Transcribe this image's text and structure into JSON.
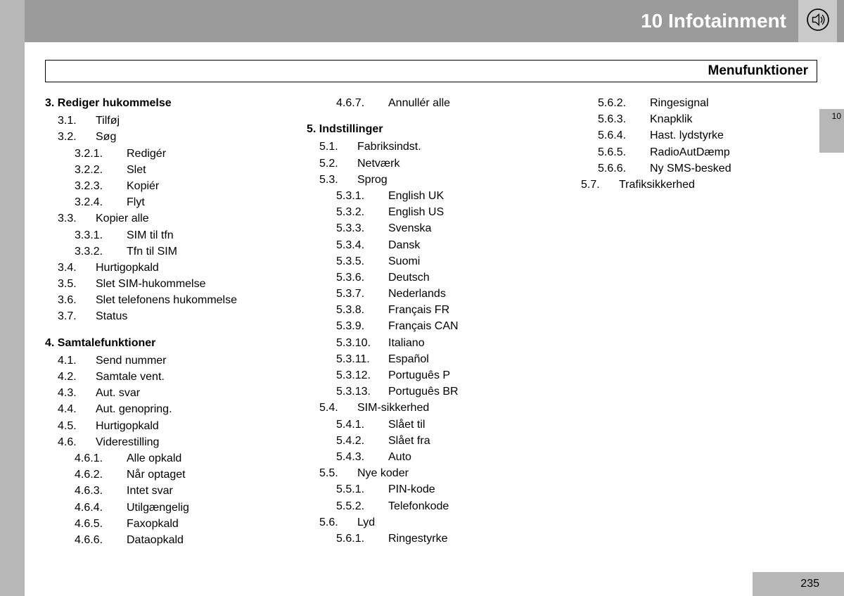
{
  "header": {
    "title": "10 Infotainment",
    "subtitle": "Menufunktioner",
    "side_tab": "10",
    "page_number": "235"
  },
  "columns": [
    [
      {
        "type": "head",
        "text": "3. Rediger hukommelse"
      },
      {
        "type": "l1",
        "num": "3.1.",
        "text": "Tilføj"
      },
      {
        "type": "l1",
        "num": "3.2.",
        "text": "Søg"
      },
      {
        "type": "l2",
        "num": "3.2.1.",
        "text": "Redigér"
      },
      {
        "type": "l2",
        "num": "3.2.2.",
        "text": "Slet"
      },
      {
        "type": "l2",
        "num": "3.2.3.",
        "text": "Kopiér"
      },
      {
        "type": "l2",
        "num": "3.2.4.",
        "text": "Flyt"
      },
      {
        "type": "l1",
        "num": "3.3.",
        "text": "Kopier alle"
      },
      {
        "type": "l2",
        "num": "3.3.1.",
        "text": "SIM til tfn"
      },
      {
        "type": "l2",
        "num": "3.3.2.",
        "text": "Tfn til SIM"
      },
      {
        "type": "l1",
        "num": "3.4.",
        "text": "Hurtigopkald"
      },
      {
        "type": "l1",
        "num": "3.5.",
        "text": "Slet SIM-hukommelse"
      },
      {
        "type": "l1",
        "num": "3.6.",
        "text": "Slet telefonens hukommelse"
      },
      {
        "type": "l1",
        "num": "3.7.",
        "text": "Status"
      },
      {
        "type": "head",
        "text": "4. Samtalefunktioner"
      },
      {
        "type": "l1",
        "num": "4.1.",
        "text": "Send nummer"
      },
      {
        "type": "l1",
        "num": "4.2.",
        "text": "Samtale vent."
      },
      {
        "type": "l1",
        "num": "4.3.",
        "text": "Aut. svar"
      },
      {
        "type": "l1",
        "num": "4.4.",
        "text": "Aut. genopring."
      },
      {
        "type": "l1",
        "num": "4.5.",
        "text": "Hurtigopkald"
      },
      {
        "type": "l1",
        "num": "4.6.",
        "text": "Viderestilling"
      },
      {
        "type": "l2",
        "num": "4.6.1.",
        "text": "Alle opkald"
      },
      {
        "type": "l2",
        "num": "4.6.2.",
        "text": "Når optaget"
      },
      {
        "type": "l2",
        "num": "4.6.3.",
        "text": "Intet svar"
      },
      {
        "type": "l2",
        "num": "4.6.4.",
        "text": "Utilgængelig"
      },
      {
        "type": "l2",
        "num": "4.6.5.",
        "text": "Faxopkald"
      },
      {
        "type": "l2",
        "num": "4.6.6.",
        "text": "Dataopkald"
      }
    ],
    [
      {
        "type": "l2",
        "num": "4.6.7.",
        "text": "Annullér alle"
      },
      {
        "type": "head",
        "text": "5. Indstillinger"
      },
      {
        "type": "l1",
        "num": "5.1.",
        "text": "Fabriksindst."
      },
      {
        "type": "l1",
        "num": "5.2.",
        "text": "Netværk"
      },
      {
        "type": "l1",
        "num": "5.3.",
        "text": "Sprog"
      },
      {
        "type": "l2",
        "num": "5.3.1.",
        "text": "English UK"
      },
      {
        "type": "l2",
        "num": "5.3.2.",
        "text": "English US"
      },
      {
        "type": "l2",
        "num": "5.3.3.",
        "text": "Svenska"
      },
      {
        "type": "l2",
        "num": "5.3.4.",
        "text": "Dansk"
      },
      {
        "type": "l2",
        "num": "5.3.5.",
        "text": "Suomi"
      },
      {
        "type": "l2",
        "num": "5.3.6.",
        "text": "Deutsch"
      },
      {
        "type": "l2",
        "num": "5.3.7.",
        "text": "Nederlands"
      },
      {
        "type": "l2",
        "num": "5.3.8.",
        "text": "Français FR"
      },
      {
        "type": "l2",
        "num": "5.3.9.",
        "text": "Français CAN"
      },
      {
        "type": "l2",
        "num": "5.3.10.",
        "text": "Italiano"
      },
      {
        "type": "l2",
        "num": "5.3.11.",
        "text": "Español"
      },
      {
        "type": "l2",
        "num": "5.3.12.",
        "text": "Português P"
      },
      {
        "type": "l2",
        "num": "5.3.13.",
        "text": "Português BR"
      },
      {
        "type": "l1",
        "num": "5.4.",
        "text": "SIM-sikkerhed"
      },
      {
        "type": "l2",
        "num": "5.4.1.",
        "text": "Slået til"
      },
      {
        "type": "l2",
        "num": "5.4.2.",
        "text": "Slået fra"
      },
      {
        "type": "l2",
        "num": "5.4.3.",
        "text": "Auto"
      },
      {
        "type": "l1",
        "num": "5.5.",
        "text": "Nye koder"
      },
      {
        "type": "l2",
        "num": "5.5.1.",
        "text": "PIN-kode"
      },
      {
        "type": "l2",
        "num": "5.5.2.",
        "text": "Telefonkode"
      },
      {
        "type": "l1",
        "num": "5.6.",
        "text": "Lyd"
      },
      {
        "type": "l2",
        "num": "5.6.1.",
        "text": "Ringestyrke"
      }
    ],
    [
      {
        "type": "l2",
        "num": "5.6.2.",
        "text": "Ringesignal"
      },
      {
        "type": "l2",
        "num": "5.6.3.",
        "text": "Knapklik"
      },
      {
        "type": "l2",
        "num": "5.6.4.",
        "text": "Hast. lydstyrke"
      },
      {
        "type": "l2",
        "num": "5.6.5.",
        "text": "RadioAutDæmp"
      },
      {
        "type": "l2",
        "num": "5.6.6.",
        "text": "Ny SMS-besked"
      },
      {
        "type": "l1",
        "num": "5.7.",
        "text": "Trafiksikkerhed"
      }
    ]
  ]
}
